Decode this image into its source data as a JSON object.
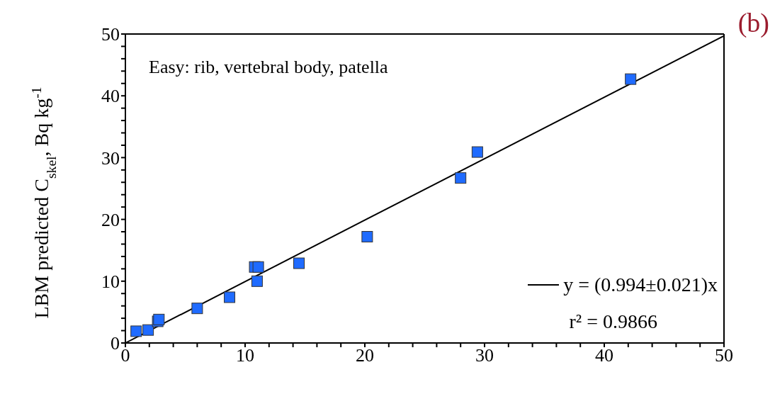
{
  "chart_data": {
    "type": "scatter",
    "ylabel": "LBM predicted C$_{skel}$, Bq kg$^{-1}$",
    "annotations": [
      "(b)",
      "Easy: rib, vertebral body, patella",
      "r² = 0.9866"
    ],
    "xlim": [
      0,
      50
    ],
    "ylim": [
      0,
      50
    ],
    "xticks": [
      0,
      {
        "value": 2,
        "label": null
      },
      {
        "value": 4,
        "label": null
      },
      {
        "value": 6,
        "label": null
      },
      {
        "value": 8,
        "label": null
      },
      10,
      {
        "value": 12,
        "label": null
      },
      {
        "value": 14,
        "label": null
      },
      {
        "value": 16,
        "label": null
      },
      {
        "value": 18,
        "label": null
      },
      20,
      {
        "value": 22,
        "label": null
      },
      {
        "value": 24,
        "label": null
      },
      {
        "value": 26,
        "label": null
      },
      {
        "value": 28,
        "label": null
      },
      30,
      {
        "value": 32,
        "label": null
      },
      {
        "value": 34,
        "label": null
      },
      {
        "value": 36,
        "label": null
      },
      {
        "value": 38,
        "label": null
      },
      40,
      {
        "value": 42,
        "label": null
      },
      {
        "value": 44,
        "label": null
      },
      {
        "value": 46,
        "label": null
      },
      {
        "value": 48,
        "label": null
      },
      50
    ],
    "yticks": [
      0,
      {
        "value": 2,
        "label": null
      },
      {
        "value": 4,
        "label": null
      },
      {
        "value": 6,
        "label": null
      },
      {
        "value": 8,
        "label": null
      },
      10,
      {
        "value": 12,
        "label": null
      },
      {
        "value": 14,
        "label": null
      },
      {
        "value": 16,
        "label": null
      },
      {
        "value": 18,
        "label": null
      },
      20,
      {
        "value": 22,
        "label": null
      },
      {
        "value": 24,
        "label": null
      },
      {
        "value": 26,
        "label": null
      },
      {
        "value": 28,
        "label": null
      },
      30,
      {
        "value": 32,
        "label": null
      },
      {
        "value": 34,
        "label": null
      },
      {
        "value": 36,
        "label": null
      },
      {
        "value": 38,
        "label": null
      },
      40,
      {
        "value": 42,
        "label": null
      },
      {
        "value": 44,
        "label": null
      },
      {
        "value": 46,
        "label": null
      },
      {
        "value": 48,
        "label": null
      },
      50
    ],
    "grid": false,
    "legend": "bottom right",
    "marker": "square",
    "series": [
      {
        "color": "#1f6bff",
        "x": [
          0.9,
          1.9,
          2.7,
          2.8,
          6.0,
          8.7,
          10.8,
          11.1,
          11.0,
          14.5,
          20.2,
          28.0,
          29.4,
          42.2
        ],
        "values": [
          1.9,
          2.1,
          3.5,
          3.8,
          5.6,
          7.4,
          12.3,
          12.3,
          10.0,
          12.9,
          17.2,
          26.7,
          30.9,
          42.7
        ]
      },
      {
        "type": "line",
        "name": "y = (0.994±0.021)x",
        "color": "#000000",
        "line_style": "solid",
        "marker": "none",
        "x": [
          0,
          50
        ],
        "values": [
          0,
          49.7
        ]
      }
    ]
  }
}
